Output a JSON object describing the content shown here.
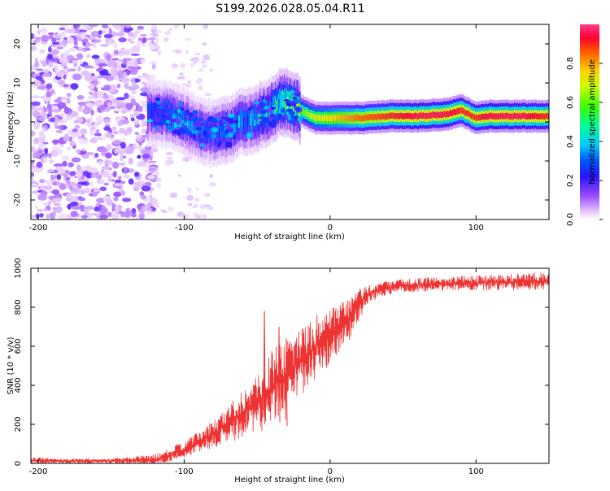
{
  "chart_data": [
    {
      "type": "heatmap",
      "title": "S199.2026.028.05.04.R11",
      "xlabel": "Height of straight line (km)",
      "ylabel": "Frequency (Hz)",
      "xlim": [
        -205,
        150
      ],
      "ylim": [
        -25,
        25
      ],
      "xticks": [
        -200,
        -100,
        0,
        100
      ],
      "yticks": [
        -20,
        -10,
        0,
        10,
        20
      ],
      "colorbar": {
        "label": "Normalized spectral amplitude",
        "range": [
          0,
          1
        ],
        "ticks": [
          0.0,
          0.2,
          0.4,
          0.6,
          0.8
        ]
      },
      "ridge": {
        "x": [
          -125,
          -110,
          -100,
          -90,
          -80,
          -70,
          -60,
          -50,
          -40,
          -35,
          -30,
          -20,
          -10,
          0,
          10,
          20,
          40,
          60,
          80,
          90,
          100,
          110,
          130,
          150
        ],
        "freq": [
          2.5,
          2,
          0,
          -2,
          -3,
          -2,
          0,
          1,
          3,
          5,
          5,
          3,
          1,
          1,
          1,
          1,
          1.5,
          1.5,
          2,
          3,
          1,
          1.5,
          1.5,
          1.5
        ],
        "amplitude": [
          0.25,
          0.3,
          0.3,
          0.3,
          0.3,
          0.35,
          0.35,
          0.4,
          0.45,
          0.5,
          0.55,
          0.6,
          0.7,
          0.75,
          0.8,
          0.85,
          0.9,
          0.95,
          0.95,
          0.9,
          0.9,
          0.95,
          0.95,
          0.9
        ]
      },
      "noise_region_x": [
        -205,
        -120
      ]
    },
    {
      "type": "line",
      "xlabel": "Height of straight line (km)",
      "ylabel": "SNR (10 * v/v)",
      "xlim": [
        -205,
        150
      ],
      "ylim": [
        0,
        1000
      ],
      "xticks": [
        -200,
        -100,
        0,
        100
      ],
      "yticks": [
        0,
        200,
        400,
        600,
        800,
        1000
      ],
      "series": [
        {
          "name": "SNR",
          "color": "#ee3333",
          "x": [
            -205,
            -180,
            -160,
            -140,
            -120,
            -110,
            -100,
            -90,
            -80,
            -70,
            -60,
            -50,
            -45,
            -40,
            -35,
            -30,
            -25,
            -20,
            -15,
            -10,
            -5,
            0,
            5,
            10,
            15,
            20,
            25,
            30,
            40,
            50,
            60,
            70,
            80,
            90,
            100,
            110,
            120,
            130,
            140,
            150
          ],
          "values": [
            15,
            12,
            12,
            15,
            20,
            40,
            70,
            110,
            150,
            200,
            260,
            300,
            350,
            380,
            420,
            460,
            490,
            520,
            560,
            600,
            630,
            640,
            680,
            720,
            760,
            820,
            860,
            880,
            900,
            910,
            915,
            920,
            920,
            925,
            920,
            930,
            925,
            930,
            935,
            930
          ],
          "spread": [
            18,
            15,
            15,
            18,
            30,
            40,
            50,
            60,
            80,
            110,
            140,
            170,
            200,
            220,
            220,
            220,
            210,
            200,
            190,
            180,
            170,
            160,
            150,
            140,
            120,
            90,
            60,
            50,
            40,
            40,
            40,
            40,
            40,
            40,
            50,
            50,
            50,
            50,
            50,
            50
          ],
          "peaks": [
            {
              "x": -45,
              "y": 780
            },
            {
              "x": -35,
              "y": 700
            },
            {
              "x": -30,
              "y": 640
            }
          ]
        }
      ]
    }
  ]
}
